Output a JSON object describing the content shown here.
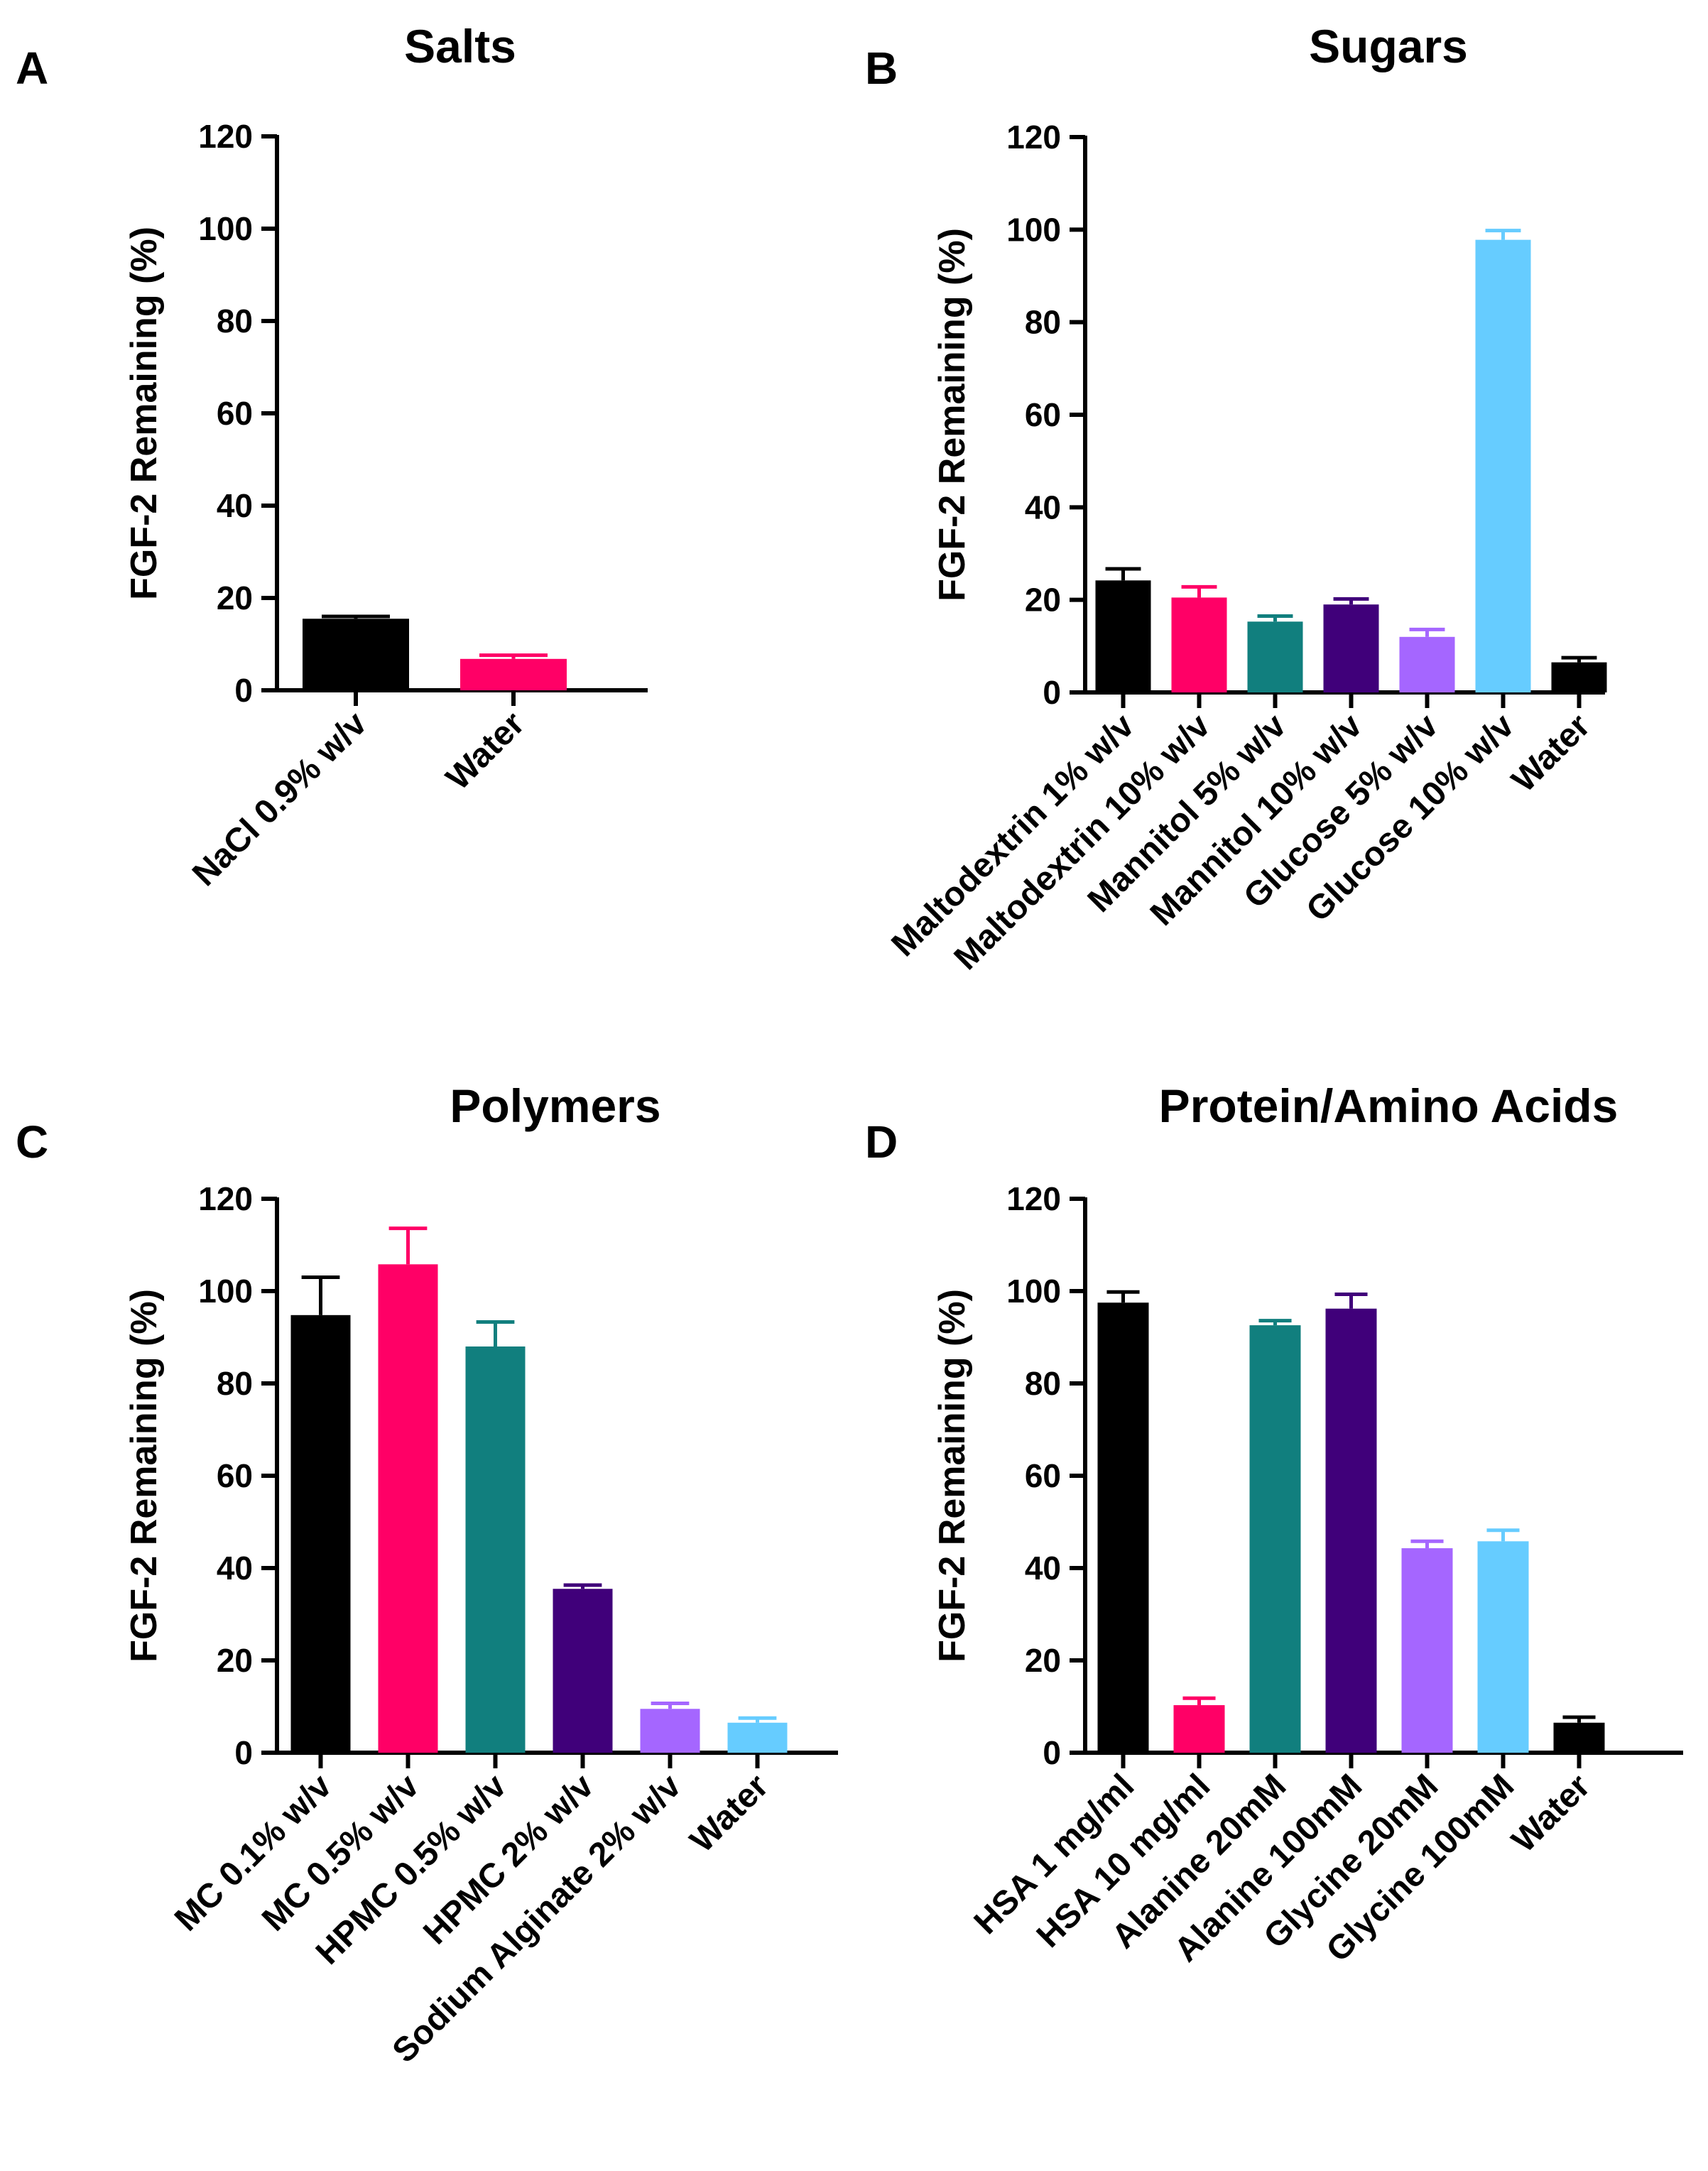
{
  "chart_data": [
    {
      "panel": "A",
      "type": "bar",
      "title": "Salts",
      "ylabel": "FGF-2 Remaining (%)",
      "xlabel": "",
      "ylim": [
        0,
        120
      ],
      "yticks": [
        0,
        20,
        40,
        60,
        80,
        100,
        120
      ],
      "categories": [
        "NaCl 0.9% w/v",
        "Water"
      ],
      "values": [
        15.5,
        6.8
      ],
      "errors": [
        0.5,
        0.8
      ],
      "colors": [
        "#000000",
        "#ff0066"
      ]
    },
    {
      "panel": "B",
      "type": "bar",
      "title": "Sugars",
      "ylabel": "FGF-2 Remaining (%)",
      "xlabel": "",
      "ylim": [
        0,
        120
      ],
      "yticks": [
        0,
        20,
        40,
        60,
        80,
        100,
        120
      ],
      "categories": [
        "Maltodextrin 1% w/v",
        "Maltodextrin 10% w/v",
        "Mannitol 5% w/v",
        "Mannitol 10% w/v",
        "Glucose 5% w/v",
        "Glucose 10% w/v",
        "Water"
      ],
      "values": [
        24.2,
        20.5,
        15.3,
        19.0,
        12.0,
        97.8,
        6.5
      ],
      "errors": [
        2.5,
        2.3,
        1.2,
        1.2,
        1.6,
        2.0,
        1.0
      ],
      "colors": [
        "#000000",
        "#ff0066",
        "#117f7e",
        "#40007a",
        "#a566ff",
        "#66ccff",
        "#000000"
      ]
    },
    {
      "panel": "C",
      "type": "bar",
      "title": "Polymers",
      "ylabel": "FGF-2 Remaining (%)",
      "xlabel": "",
      "ylim": [
        0,
        120
      ],
      "yticks": [
        0,
        20,
        40,
        60,
        80,
        100,
        120
      ],
      "categories": [
        "MC 0.1% w/v",
        "MC 0.5% w/v",
        "HPMC 0.5% w/v",
        "HPMC 2% w/v",
        "Sodium Alginate 2% w/v",
        "Water"
      ],
      "values": [
        94.8,
        105.8,
        88.0,
        35.5,
        9.5,
        6.5
      ],
      "errors": [
        8.2,
        7.8,
        5.3,
        0.8,
        1.2,
        1.0
      ],
      "colors": [
        "#000000",
        "#ff0066",
        "#117f7e",
        "#40007a",
        "#a566ff",
        "#66ccff"
      ]
    },
    {
      "panel": "D",
      "type": "bar",
      "title": "Protein/Amino Acids",
      "ylabel": "FGF-2 Remaining (%)",
      "xlabel": "",
      "ylim": [
        0,
        120
      ],
      "yticks": [
        0,
        20,
        40,
        60,
        80,
        100,
        120
      ],
      "categories": [
        "HSA 1 mg/ml",
        "HSA 10 mg/ml",
        "Alanine 20mM",
        "Alanine 100mM",
        "Glycine 20mM",
        "Glycine 100mM",
        "Water"
      ],
      "values": [
        97.5,
        10.3,
        92.6,
        96.2,
        44.3,
        45.8,
        6.5
      ],
      "errors": [
        2.3,
        1.5,
        1.0,
        3.1,
        1.5,
        2.4,
        1.2
      ],
      "colors": [
        "#000000",
        "#ff0066",
        "#117f7e",
        "#40007a",
        "#a566ff",
        "#66ccff",
        "#000000"
      ]
    }
  ]
}
